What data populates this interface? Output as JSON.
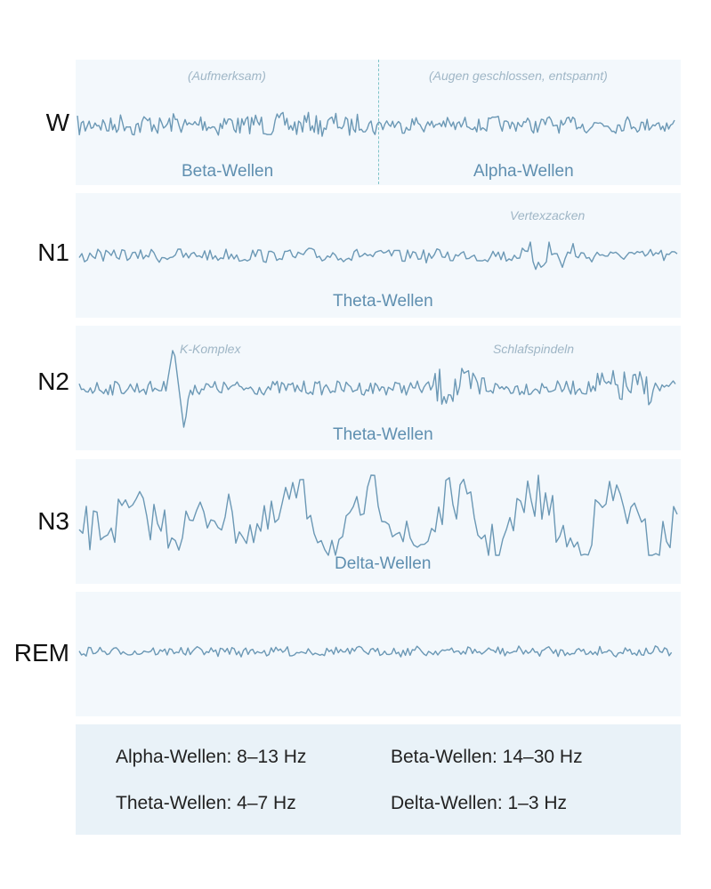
{
  "rows": [
    {
      "label": "W",
      "notes": [
        "(Aufmerksam)",
        "(Augen geschlossen, entspannt)"
      ],
      "waves": [
        "Beta-Wellen",
        "Alpha-Wellen"
      ]
    },
    {
      "label": "N1",
      "notes": [
        "Vertexzacken"
      ],
      "waves": [
        "Theta-Wellen"
      ]
    },
    {
      "label": "N2",
      "notes": [
        "K-Komplex",
        "Schlafspindeln"
      ],
      "waves": [
        "Theta-Wellen"
      ]
    },
    {
      "label": "N3",
      "notes": [],
      "waves": [
        "Delta-Wellen"
      ]
    },
    {
      "label": "REM",
      "notes": [],
      "waves": []
    }
  ],
  "legend": [
    "Alpha-Wellen: 8–13 Hz",
    "Beta-Wellen: 14–30 Hz",
    "Theta-Wellen: 4–7 Hz",
    "Delta-Wellen: 1–3 Hz"
  ],
  "colors": {
    "panel": "#f3f8fc",
    "legend_panel": "#e9f2f8",
    "wave": "#6b98b5",
    "wave_label": "#5f8fb0",
    "note": "#9fb6c6",
    "divider": "#7fc4c8"
  }
}
